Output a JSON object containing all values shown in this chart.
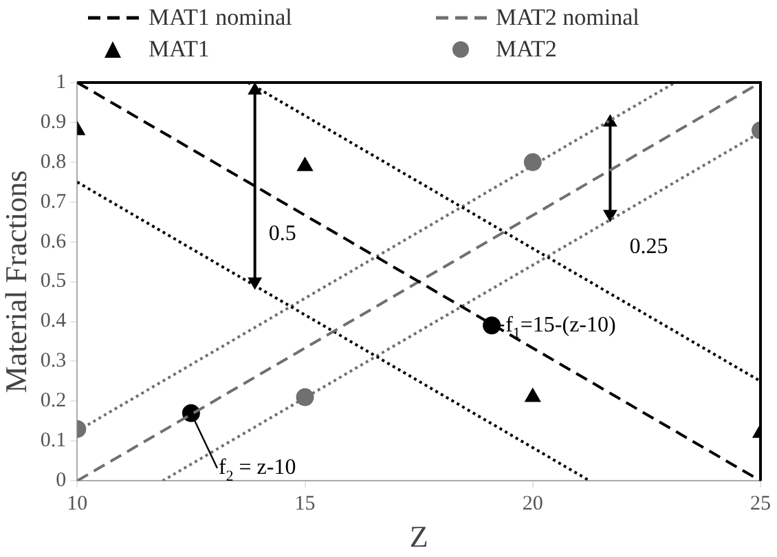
{
  "chart_data": {
    "type": "line",
    "xlabel": "Z",
    "ylabel": "Material Fractions",
    "xlim": [
      10,
      25
    ],
    "xticks": [
      10,
      15,
      20,
      25
    ],
    "ylim": [
      0,
      1
    ],
    "yticks": [
      0,
      0.1,
      0.2,
      0.3,
      0.4,
      0.5,
      0.6,
      0.7,
      0.8,
      0.9,
      1
    ],
    "grid": false,
    "legend": "top",
    "series": [
      {
        "name": "MAT1 nominal",
        "color": "#000000",
        "line_style": "dashed",
        "marker": "none",
        "x": [
          10,
          25
        ],
        "values": [
          1,
          0
        ]
      },
      {
        "name": "MAT2 nominal",
        "color": "#707070",
        "line_style": "dashed",
        "marker": "none",
        "x": [
          10,
          25
        ],
        "values": [
          0,
          1
        ]
      },
      {
        "name": "MAT1",
        "type": "scatter",
        "color": "#000000",
        "marker": "triangle",
        "x": [
          10,
          15,
          20,
          25
        ],
        "values": [
          0.88,
          0.79,
          0.21,
          0.12
        ]
      },
      {
        "name": "MAT2",
        "type": "scatter",
        "color": "#707070",
        "marker": "circle",
        "x": [
          10,
          15,
          20,
          25
        ],
        "values": [
          0.13,
          0.21,
          0.8,
          0.88
        ]
      },
      {
        "color": "#000000",
        "line_style": "dotted",
        "marker": "none",
        "x": [
          13.75,
          25
        ],
        "values": [
          1,
          0.25
        ]
      },
      {
        "color": "#000000",
        "line_style": "dotted",
        "marker": "none",
        "x": [
          10,
          21.25
        ],
        "values": [
          0.75,
          0
        ]
      },
      {
        "color": "#707070",
        "line_style": "dotted",
        "marker": "none",
        "x": [
          10,
          23.125
        ],
        "values": [
          0.125,
          1
        ]
      },
      {
        "color": "#707070",
        "line_style": "dotted",
        "marker": "none",
        "x": [
          11.875,
          25
        ],
        "values": [
          0,
          0.875
        ]
      },
      {
        "color": "#000000",
        "line_style": "solid",
        "marker": "triangle",
        "x": [
          13.9,
          13.9
        ],
        "values": [
          0.5,
          0.98
        ]
      },
      {
        "color": "#000000",
        "line_style": "solid",
        "marker": "triangle",
        "x": [
          21.7,
          21.7
        ],
        "values": [
          0.67,
          0.9
        ]
      },
      {
        "type": "scatter",
        "color": "#000000",
        "marker": "circle",
        "x": [
          12.5,
          19.1
        ],
        "values": [
          0.17,
          0.39
        ]
      }
    ],
    "annotations": [
      {
        "text": "0.5",
        "x": 13.9,
        "y": 0.62
      },
      {
        "text": "0.25",
        "x": 21.7,
        "y": 0.67
      },
      {
        "text": "f$_{2}$ = z-10",
        "x": 12.5,
        "y": 0.17
      },
      {
        "text": "f$_{1}$=15-(z-10)",
        "x": 19.1,
        "y": 0.39
      }
    ]
  }
}
